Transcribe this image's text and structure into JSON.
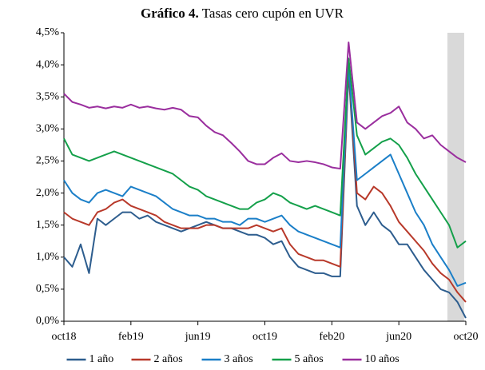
{
  "chart_data": {
    "type": "line",
    "title_number": "Gráfico 4.",
    "title": "Tasas cero cupón en UVR",
    "x": [
      0,
      0.5,
      1,
      1.5,
      2,
      2.5,
      3,
      3.5,
      4,
      4.5,
      5,
      5.5,
      6,
      6.5,
      7,
      7.5,
      8,
      8.5,
      9,
      9.5,
      10,
      10.5,
      11,
      11.5,
      12,
      12.5,
      13,
      13.5,
      14,
      14.5,
      15,
      15.5,
      16,
      16.5,
      17,
      17.5,
      18,
      18.5,
      19,
      19.5,
      20,
      20.5,
      21,
      21.5,
      22,
      22.5,
      23,
      23.5,
      24
    ],
    "xlim": [
      0,
      24
    ],
    "xticks": [
      {
        "value": 0,
        "label": "oct18"
      },
      {
        "value": 4,
        "label": "feb19"
      },
      {
        "value": 8,
        "label": "jun19"
      },
      {
        "value": 12,
        "label": "oct19"
      },
      {
        "value": 16,
        "label": "feb20"
      },
      {
        "value": 20,
        "label": "jun20"
      },
      {
        "value": 24,
        "label": "oct20"
      }
    ],
    "ylim": [
      0,
      4.5
    ],
    "yticks": [
      {
        "value": 0,
        "label": "0,0%"
      },
      {
        "value": 0.5,
        "label": "0,5%"
      },
      {
        "value": 1,
        "label": "1,0%"
      },
      {
        "value": 1.5,
        "label": "1,5%"
      },
      {
        "value": 2,
        "label": "2,0%"
      },
      {
        "value": 2.5,
        "label": "2,5%"
      },
      {
        "value": 3,
        "label": "3,0%"
      },
      {
        "value": 3.5,
        "label": "3,5%"
      },
      {
        "value": 4,
        "label": "4,0%"
      },
      {
        "value": 4.5,
        "label": "4,5%"
      }
    ],
    "highlight_range": [
      22.9,
      23.9
    ],
    "highlight_color": "#d9d9d9",
    "legend": "bottom",
    "series": [
      {
        "name": "1 año",
        "color": "#2d5d8e",
        "values": [
          1.0,
          0.85,
          1.2,
          0.75,
          1.6,
          1.5,
          1.6,
          1.7,
          1.7,
          1.6,
          1.65,
          1.55,
          1.5,
          1.45,
          1.4,
          1.45,
          1.5,
          1.55,
          1.5,
          1.45,
          1.45,
          1.4,
          1.35,
          1.35,
          1.3,
          1.2,
          1.25,
          1.0,
          0.85,
          0.8,
          0.75,
          0.75,
          0.7,
          0.7,
          3.9,
          1.8,
          1.5,
          1.7,
          1.5,
          1.4,
          1.2,
          1.2,
          1.0,
          0.8,
          0.65,
          0.5,
          0.45,
          0.3,
          0.05
        ]
      },
      {
        "name": "2 años",
        "color": "#b8392a",
        "values": [
          1.7,
          1.6,
          1.55,
          1.5,
          1.7,
          1.75,
          1.85,
          1.9,
          1.8,
          1.75,
          1.7,
          1.65,
          1.55,
          1.5,
          1.45,
          1.45,
          1.45,
          1.5,
          1.5,
          1.45,
          1.45,
          1.45,
          1.45,
          1.5,
          1.45,
          1.4,
          1.45,
          1.2,
          1.05,
          1.0,
          0.95,
          0.95,
          0.9,
          0.85,
          3.95,
          2.0,
          1.9,
          2.1,
          2.0,
          1.8,
          1.55,
          1.4,
          1.25,
          1.1,
          0.9,
          0.75,
          0.65,
          0.45,
          0.3
        ]
      },
      {
        "name": "3 años",
        "color": "#1b7fc8",
        "values": [
          2.2,
          2.0,
          1.9,
          1.85,
          2.0,
          2.05,
          2.0,
          1.95,
          2.1,
          2.05,
          2.0,
          1.95,
          1.85,
          1.75,
          1.7,
          1.65,
          1.65,
          1.6,
          1.6,
          1.55,
          1.55,
          1.5,
          1.6,
          1.6,
          1.55,
          1.6,
          1.65,
          1.5,
          1.4,
          1.35,
          1.3,
          1.25,
          1.2,
          1.15,
          4.0,
          2.2,
          2.3,
          2.4,
          2.5,
          2.6,
          2.3,
          2.0,
          1.7,
          1.5,
          1.2,
          1.0,
          0.8,
          0.55,
          0.6
        ]
      },
      {
        "name": "5 años",
        "color": "#14a04a",
        "values": [
          2.85,
          2.6,
          2.55,
          2.5,
          2.55,
          2.6,
          2.65,
          2.6,
          2.55,
          2.5,
          2.45,
          2.4,
          2.35,
          2.3,
          2.2,
          2.1,
          2.05,
          1.95,
          1.9,
          1.85,
          1.8,
          1.75,
          1.75,
          1.85,
          1.9,
          2.0,
          1.95,
          1.85,
          1.8,
          1.75,
          1.8,
          1.75,
          1.7,
          1.65,
          4.1,
          2.9,
          2.6,
          2.7,
          2.8,
          2.85,
          2.75,
          2.55,
          2.3,
          2.1,
          1.9,
          1.7,
          1.5,
          1.15,
          1.25
        ]
      },
      {
        "name": "10 años",
        "color": "#9a2e9e",
        "values": [
          3.55,
          3.42,
          3.38,
          3.33,
          3.35,
          3.32,
          3.35,
          3.33,
          3.38,
          3.33,
          3.35,
          3.32,
          3.3,
          3.33,
          3.3,
          3.2,
          3.18,
          3.05,
          2.95,
          2.9,
          2.78,
          2.65,
          2.5,
          2.45,
          2.45,
          2.55,
          2.62,
          2.5,
          2.48,
          2.5,
          2.48,
          2.45,
          2.4,
          2.38,
          4.35,
          3.1,
          3.0,
          3.1,
          3.2,
          3.25,
          3.35,
          3.1,
          3.0,
          2.85,
          2.9,
          2.75,
          2.65,
          2.55,
          2.48
        ]
      }
    ]
  }
}
